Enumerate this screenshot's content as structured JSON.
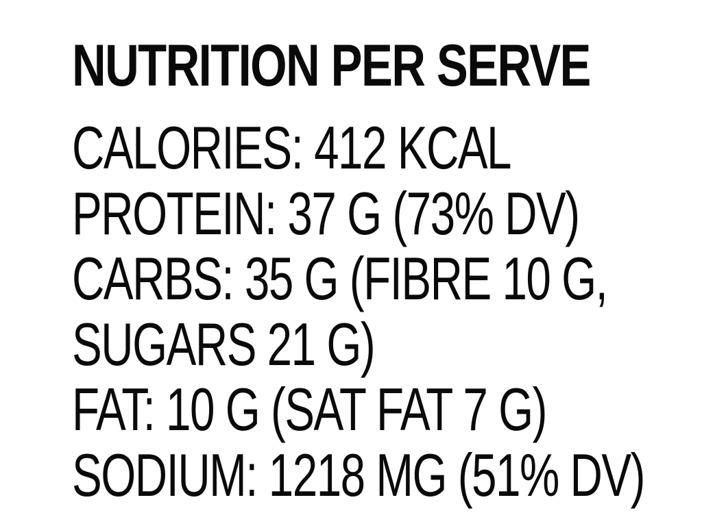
{
  "colors": {
    "text": "#0a0a0a",
    "background": "#ffffff"
  },
  "label": {
    "title": "NUTRITION PER SERVE",
    "lines": [
      "CALORIES: 412 KCAL",
      "PROTEIN: 37 G (73% DV)",
      "CARBS: 35 G (FIBRE 10 G,",
      "SUGARS 21 G)",
      "FAT: 10 G (SAT FAT 7 G)",
      "SODIUM: 1218 MG (51% DV)"
    ],
    "nutrients": {
      "calories_kcal": 412,
      "protein_g": 37,
      "protein_dv_percent": 73,
      "carbs_g": 35,
      "fibre_g": 10,
      "sugars_g": 21,
      "fat_g": 10,
      "sat_fat_g": 7,
      "sodium_mg": 1218,
      "sodium_dv_percent": 51
    }
  }
}
